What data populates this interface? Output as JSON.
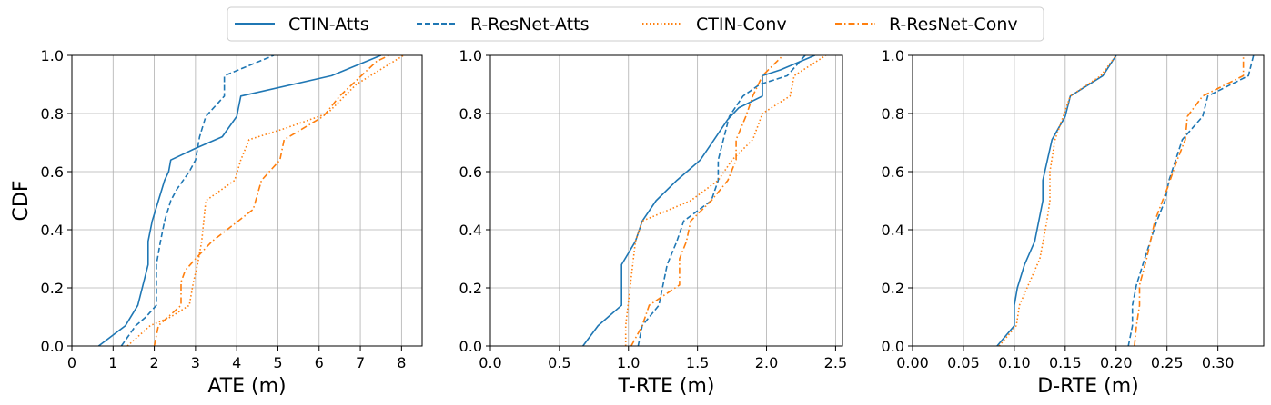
{
  "legend": {
    "location": "top-center",
    "entries": [
      {
        "label": "CTIN-Atts",
        "color": "#1f77b4",
        "style": "solid"
      },
      {
        "label": "R-ResNet-Atts",
        "color": "#1f77b4",
        "style": "dashed"
      },
      {
        "label": "CTIN-Conv",
        "color": "#ff7f0e",
        "style": "dotted"
      },
      {
        "label": "R-ResNet-Conv",
        "color": "#ff7f0e",
        "style": "dashdot"
      }
    ]
  },
  "chart_data": [
    {
      "type": "line",
      "xlabel": "ATE (m)",
      "ylabel": "CDF",
      "xlim": [
        0,
        8.5
      ],
      "ylim": [
        0,
        1.0
      ],
      "xticks": [
        0,
        1,
        2,
        3,
        4,
        5,
        6,
        7,
        8
      ],
      "xticklabels": [
        "0",
        "1",
        "2",
        "3",
        "4",
        "5",
        "6",
        "7",
        "8"
      ],
      "yticks": [
        0,
        0.2,
        0.4,
        0.6,
        0.8,
        1.0
      ],
      "yticklabels": [
        "0.0",
        "0.2",
        "0.4",
        "0.6",
        "0.8",
        "1.0"
      ],
      "grid": true,
      "series": [
        {
          "name": "CTIN-Atts",
          "x": [
            0.65,
            1.3,
            1.6,
            1.85,
            1.85,
            1.95,
            2.1,
            2.25,
            2.35,
            2.4,
            3.0,
            3.65,
            4.0,
            4.1,
            6.3,
            7.5
          ],
          "y": [
            0.0,
            0.07,
            0.14,
            0.28,
            0.36,
            0.43,
            0.5,
            0.57,
            0.6,
            0.64,
            0.68,
            0.72,
            0.79,
            0.86,
            0.93,
            1.0
          ]
        },
        {
          "name": "R-ResNet-Atts",
          "x": [
            1.2,
            1.55,
            1.8,
            2.05,
            2.05,
            2.15,
            2.25,
            2.4,
            2.55,
            2.85,
            3.0,
            3.1,
            3.25,
            3.7,
            3.7,
            4.9
          ],
          "y": [
            0.0,
            0.07,
            0.1,
            0.14,
            0.28,
            0.36,
            0.43,
            0.5,
            0.54,
            0.6,
            0.64,
            0.72,
            0.79,
            0.86,
            0.93,
            1.0
          ]
        },
        {
          "name": "CTIN-Conv",
          "x": [
            1.35,
            1.9,
            2.4,
            2.85,
            2.95,
            3.05,
            3.15,
            3.25,
            3.95,
            4.1,
            4.3,
            5.2,
            6.2,
            6.9,
            8.05
          ],
          "y": [
            0.0,
            0.07,
            0.1,
            0.14,
            0.22,
            0.28,
            0.36,
            0.5,
            0.57,
            0.64,
            0.71,
            0.75,
            0.8,
            0.9,
            1.0
          ]
        },
        {
          "name": "R-ResNet-Conv",
          "x": [
            2.0,
            2.1,
            2.65,
            2.65,
            2.75,
            3.0,
            3.4,
            4.4,
            4.6,
            5.05,
            5.15,
            6.1,
            6.5,
            7.4,
            7.7
          ],
          "y": [
            0.0,
            0.07,
            0.14,
            0.22,
            0.26,
            0.3,
            0.36,
            0.47,
            0.57,
            0.64,
            0.71,
            0.79,
            0.86,
            0.98,
            1.0
          ]
        }
      ]
    },
    {
      "type": "line",
      "xlabel": "T-RTE (m)",
      "ylabel": "",
      "xlim": [
        0,
        2.55
      ],
      "ylim": [
        0,
        1.0
      ],
      "xticks": [
        0,
        0.5,
        1.0,
        1.5,
        2.0,
        2.5
      ],
      "xticklabels": [
        "0.0",
        "0.5",
        "1.0",
        "1.5",
        "2.0",
        "2.5"
      ],
      "yticks": [
        0,
        0.2,
        0.4,
        0.6,
        0.8,
        1.0
      ],
      "yticklabels": [
        "0.0",
        "0.2",
        "0.4",
        "0.6",
        "0.8",
        "1.0"
      ],
      "grid": true,
      "series": [
        {
          "name": "CTIN-Atts",
          "x": [
            0.67,
            0.78,
            0.95,
            0.95,
            1.05,
            1.1,
            1.2,
            1.35,
            1.52,
            1.62,
            1.72,
            1.8,
            1.97,
            1.97,
            2.1,
            2.35
          ],
          "y": [
            0.0,
            0.07,
            0.14,
            0.28,
            0.36,
            0.43,
            0.5,
            0.57,
            0.64,
            0.71,
            0.78,
            0.82,
            0.86,
            0.93,
            0.95,
            1.0
          ]
        },
        {
          "name": "R-ResNet-Atts",
          "x": [
            1.07,
            1.1,
            1.22,
            1.28,
            1.35,
            1.4,
            1.6,
            1.65,
            1.65,
            1.73,
            1.83,
            1.95,
            2.15,
            2.28
          ],
          "y": [
            0.0,
            0.07,
            0.14,
            0.28,
            0.36,
            0.43,
            0.5,
            0.57,
            0.64,
            0.79,
            0.86,
            0.9,
            0.93,
            1.0
          ]
        },
        {
          "name": "CTIN-Conv",
          "x": [
            0.98,
            0.98,
            1.05,
            1.1,
            1.45,
            1.65,
            1.75,
            1.9,
            1.97,
            2.17,
            2.2,
            2.43
          ],
          "y": [
            0.0,
            0.07,
            0.36,
            0.43,
            0.5,
            0.57,
            0.64,
            0.71,
            0.8,
            0.86,
            0.93,
            1.0
          ]
        },
        {
          "name": "R-ResNet-Conv",
          "x": [
            1.02,
            1.1,
            1.15,
            1.37,
            1.37,
            1.42,
            1.45,
            1.6,
            1.72,
            1.78,
            1.78,
            1.85,
            1.9,
            1.97,
            2.12
          ],
          "y": [
            0.0,
            0.07,
            0.14,
            0.21,
            0.3,
            0.36,
            0.43,
            0.5,
            0.57,
            0.64,
            0.71,
            0.79,
            0.86,
            0.93,
            1.0
          ]
        }
      ]
    },
    {
      "type": "line",
      "xlabel": "D-RTE (m)",
      "ylabel": "",
      "xlim": [
        0,
        0.345
      ],
      "ylim": [
        0,
        1.0
      ],
      "xticks": [
        0,
        0.05,
        0.1,
        0.15,
        0.2,
        0.25,
        0.3
      ],
      "xticklabels": [
        "0.00",
        "0.05",
        "0.10",
        "0.15",
        "0.20",
        "0.25",
        "0.30"
      ],
      "yticks": [
        0,
        0.2,
        0.4,
        0.6,
        0.8,
        1.0
      ],
      "yticklabels": [
        "0.0",
        "0.2",
        "0.4",
        "0.6",
        "0.8",
        "1.0"
      ],
      "grid": true,
      "series": [
        {
          "name": "CTIN-Atts",
          "x": [
            0.083,
            0.1,
            0.1,
            0.103,
            0.11,
            0.12,
            0.128,
            0.128,
            0.137,
            0.15,
            0.155,
            0.187,
            0.2
          ],
          "y": [
            0.0,
            0.07,
            0.14,
            0.2,
            0.28,
            0.36,
            0.5,
            0.57,
            0.71,
            0.79,
            0.86,
            0.93,
            1.0
          ]
        },
        {
          "name": "R-ResNet-Atts",
          "x": [
            0.212,
            0.216,
            0.216,
            0.22,
            0.228,
            0.24,
            0.248,
            0.252,
            0.265,
            0.285,
            0.29,
            0.33,
            0.335
          ],
          "y": [
            0.0,
            0.07,
            0.14,
            0.21,
            0.3,
            0.43,
            0.5,
            0.57,
            0.71,
            0.79,
            0.86,
            0.93,
            1.0
          ]
        },
        {
          "name": "CTIN-Conv",
          "x": [
            0.085,
            0.102,
            0.105,
            0.115,
            0.125,
            0.132,
            0.135,
            0.135,
            0.14,
            0.155,
            0.185,
            0.2
          ],
          "y": [
            0.0,
            0.07,
            0.14,
            0.22,
            0.3,
            0.43,
            0.5,
            0.6,
            0.71,
            0.86,
            0.93,
            1.0
          ]
        },
        {
          "name": "R-ResNet-Conv",
          "x": [
            0.218,
            0.22,
            0.223,
            0.223,
            0.23,
            0.238,
            0.25,
            0.26,
            0.268,
            0.27,
            0.285,
            0.325,
            0.325
          ],
          "y": [
            0.0,
            0.07,
            0.14,
            0.21,
            0.3,
            0.43,
            0.54,
            0.64,
            0.71,
            0.79,
            0.86,
            0.93,
            1.0
          ]
        }
      ]
    }
  ]
}
